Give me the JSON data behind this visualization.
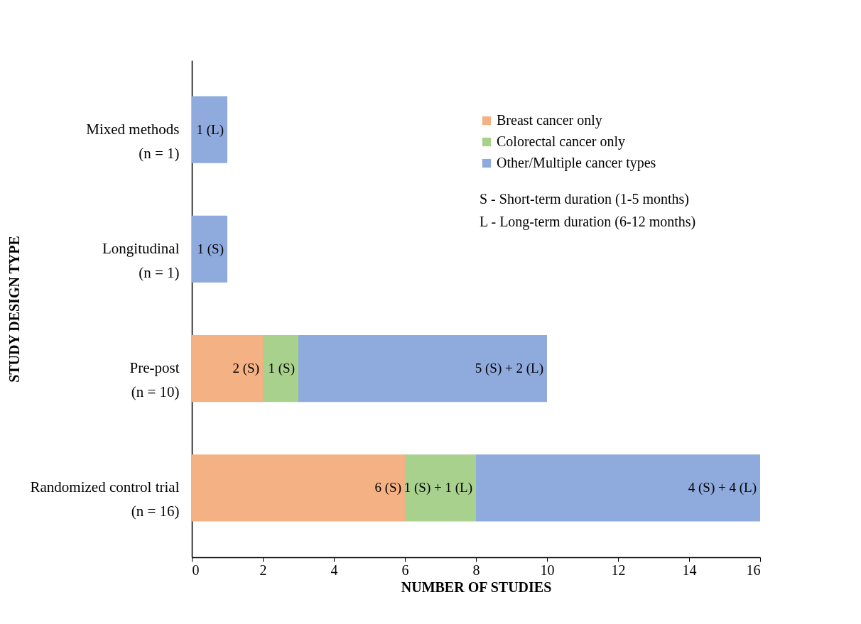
{
  "chart_data": {
    "type": "bar",
    "orientation": "horizontal",
    "stacked": true,
    "categories": [
      "Mixed methods (n = 1)",
      "Longitudinal (n = 1)",
      "Pre-post (n = 10)",
      "Randomized control trial (n = 16)"
    ],
    "series": [
      {
        "name": "Breast cancer only",
        "color": "#f4b183",
        "values": [
          null,
          null,
          2,
          6
        ]
      },
      {
        "name": "Colorectal cancer only",
        "color": "#a9d18e",
        "values": [
          null,
          null,
          1,
          2
        ]
      },
      {
        "name": "Other/Multiple cancer types",
        "color": "#8faadc",
        "values": [
          1,
          1,
          7,
          8
        ]
      }
    ],
    "xlabel": "NUMBER OF STUDIES",
    "ylabel": "STUDY DESIGN TYPE",
    "xlim": [
      0,
      16
    ],
    "xticks": [
      0,
      2,
      4,
      6,
      8,
      10,
      12,
      14,
      16
    ],
    "legend": "top right",
    "grid": false,
    "annotations": [
      "S - Short-term duration (1-5 months)",
      "L - Long-term duration (6-12 months)",
      {
        "text": "1 (L)",
        "x": 1,
        "y": "Mixed methods (n = 1)"
      },
      {
        "text": "1 (S)",
        "x": 1,
        "y": "Longitudinal (n = 1)"
      },
      {
        "text": "2 (S)",
        "x": 2,
        "y": "Pre-post (n = 10)"
      },
      {
        "text": "1 (S)",
        "x": 3,
        "y": "Pre-post (n = 10)"
      },
      {
        "text": "5 (S) + 2 (L)",
        "x": 10,
        "y": "Pre-post (n = 10)"
      },
      {
        "text": "6 (S)",
        "x": 6,
        "y": "Randomized control trial (n = 16)"
      },
      {
        "text": "1 (S) + 1 (L)",
        "x": 8,
        "y": "Randomized control trial (n = 16)"
      },
      {
        "text": "4 (S) + 4 (L)",
        "x": 16,
        "y": "Randomized control trial (n = 16)"
      }
    ]
  }
}
